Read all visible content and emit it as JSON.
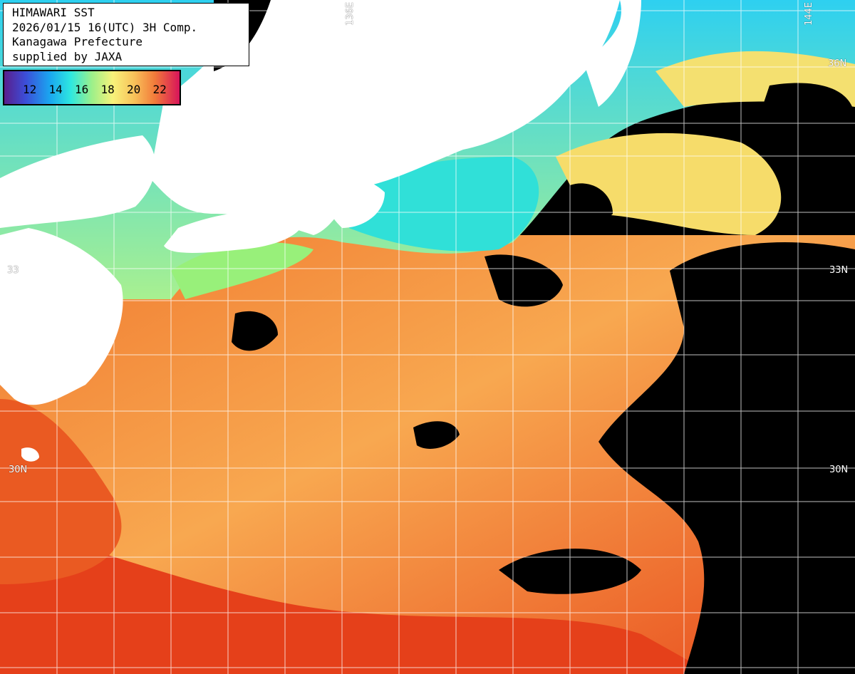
{
  "info": {
    "line1": "HIMAWARI SST",
    "line2": "2026/01/15 16(UTC) 3H Comp.",
    "line3": "Kanagawa Prefecture",
    "line4": "supplied by JAXA"
  },
  "colorbar": {
    "labels": [
      "12",
      "14",
      "16",
      "18",
      "20",
      "22"
    ]
  },
  "grid_labels": {
    "lat_36_right": "36N",
    "lat_33_left": "33",
    "lat_33_right": "33N",
    "lat_30_left": "30N",
    "lat_30_right": "30N",
    "lon_136": "136E",
    "lon_144": "144E"
  },
  "colors": {
    "land": "#ffffff",
    "cloud": "#000000",
    "warm_sea": "#f0641e",
    "mid_sea": "#f8a04a",
    "cool_sea": "#7cf0b0",
    "cold_sea": "#20c8f0",
    "grid": "#ffffff"
  }
}
